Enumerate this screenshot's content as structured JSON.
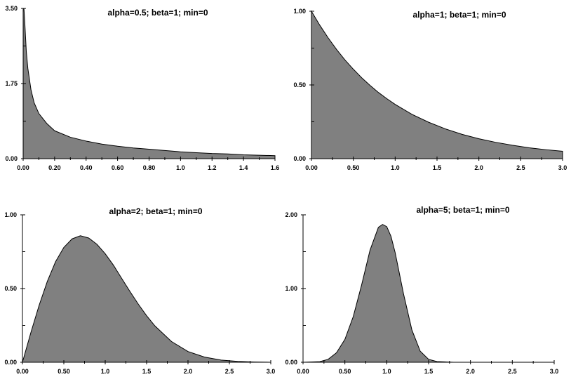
{
  "chart_data": [
    {
      "type": "area",
      "title": "alpha=0.5; beta=1; min=0",
      "xlim": [
        0,
        1.6
      ],
      "ylim": [
        0,
        3.5
      ],
      "x_ticks": [
        "0.00",
        "0.20",
        "0.40",
        "0.60",
        "0.80",
        "1.0",
        "1.2",
        "1.4",
        "1.6"
      ],
      "x_tick_values": [
        0,
        0.2,
        0.4,
        0.6,
        0.8,
        1.0,
        1.2,
        1.4,
        1.6
      ],
      "y_ticks": [
        "0.00",
        "1.75",
        "3.50"
      ],
      "y_tick_values": [
        0,
        1.75,
        3.5
      ],
      "series": [
        {
          "x": [
            0,
            0.005,
            0.01,
            0.02,
            0.03,
            0.05,
            0.07,
            0.1,
            0.15,
            0.2,
            0.3,
            0.4,
            0.5,
            0.6,
            0.7,
            0.8,
            0.9,
            1.0,
            1.1,
            1.2,
            1.3,
            1.4,
            1.5,
            1.6
          ],
          "y": [
            3.5,
            3.5,
            3.2,
            2.5,
            2.1,
            1.6,
            1.3,
            1.05,
            0.82,
            0.65,
            0.5,
            0.41,
            0.34,
            0.29,
            0.25,
            0.22,
            0.19,
            0.16,
            0.14,
            0.12,
            0.11,
            0.09,
            0.08,
            0.07
          ]
        }
      ],
      "fill": "#808080"
    },
    {
      "type": "area",
      "title": "alpha=1; beta=1; min=0",
      "xlim": [
        0,
        3.0
      ],
      "ylim": [
        0,
        1.0
      ],
      "x_ticks": [
        "0.00",
        "0.50",
        "1.0",
        "1.5",
        "2.0",
        "2.5",
        "3.0"
      ],
      "x_tick_values": [
        0,
        0.5,
        1.0,
        1.5,
        2.0,
        2.5,
        3.0
      ],
      "y_ticks": [
        "0.00",
        "0.50",
        "1.00"
      ],
      "y_tick_values": [
        0,
        0.5,
        1.0
      ],
      "series": [
        {
          "x": [
            0,
            0.1,
            0.2,
            0.3,
            0.4,
            0.5,
            0.6,
            0.7,
            0.8,
            0.9,
            1.0,
            1.2,
            1.4,
            1.6,
            1.8,
            2.0,
            2.2,
            2.4,
            2.6,
            2.8,
            3.0
          ],
          "y": [
            1.0,
            0.905,
            0.819,
            0.741,
            0.67,
            0.607,
            0.549,
            0.497,
            0.449,
            0.407,
            0.368,
            0.301,
            0.247,
            0.202,
            0.165,
            0.135,
            0.111,
            0.091,
            0.074,
            0.061,
            0.05
          ]
        }
      ],
      "fill": "#808080"
    },
    {
      "type": "area",
      "title": "alpha=2; beta=1; min=0",
      "xlim": [
        0,
        3.0
      ],
      "ylim": [
        0,
        1.0
      ],
      "x_ticks": [
        "0.00",
        "0.50",
        "1.0",
        "1.5",
        "2.0",
        "2.5",
        "3.0"
      ],
      "x_tick_values": [
        0,
        0.5,
        1.0,
        1.5,
        2.0,
        2.5,
        3.0
      ],
      "y_ticks": [
        "0.00",
        "0.50",
        "1.00"
      ],
      "y_tick_values": [
        0,
        0.5,
        1.0
      ],
      "series": [
        {
          "x": [
            0,
            0.1,
            0.2,
            0.3,
            0.4,
            0.5,
            0.6,
            0.7,
            0.8,
            0.9,
            1.0,
            1.1,
            1.2,
            1.3,
            1.4,
            1.5,
            1.6,
            1.8,
            2.0,
            2.2,
            2.4,
            2.6,
            2.8,
            3.0
          ],
          "y": [
            0,
            0.198,
            0.384,
            0.548,
            0.682,
            0.779,
            0.837,
            0.858,
            0.843,
            0.8,
            0.736,
            0.658,
            0.568,
            0.479,
            0.394,
            0.316,
            0.247,
            0.141,
            0.073,
            0.035,
            0.015,
            0.006,
            0.002,
            0.0
          ]
        }
      ],
      "fill": "#808080"
    },
    {
      "type": "area",
      "title": "alpha=5; beta=1; min=0",
      "xlim": [
        0,
        3.0
      ],
      "ylim": [
        0,
        2.0
      ],
      "x_ticks": [
        "0.00",
        "0.50",
        "1.0",
        "1.5",
        "2.0",
        "2.5",
        "3.0"
      ],
      "x_tick_values": [
        0,
        0.5,
        1.0,
        1.5,
        2.0,
        2.5,
        3.0
      ],
      "y_ticks": [
        "0.00",
        "1.00",
        "2.00"
      ],
      "y_tick_values": [
        0,
        1.0,
        2.0
      ],
      "series": [
        {
          "x": [
            0,
            0.2,
            0.3,
            0.4,
            0.5,
            0.6,
            0.7,
            0.8,
            0.9,
            0.95,
            1.0,
            1.05,
            1.1,
            1.2,
            1.3,
            1.4,
            1.5,
            1.6,
            1.8,
            2.0,
            3.0
          ],
          "y": [
            0,
            0.008,
            0.04,
            0.13,
            0.31,
            0.62,
            1.05,
            1.52,
            1.83,
            1.87,
            1.84,
            1.71,
            1.49,
            0.93,
            0.44,
            0.15,
            0.04,
            0.01,
            0.0,
            0.0,
            0.0
          ]
        }
      ],
      "fill": "#808080"
    }
  ]
}
